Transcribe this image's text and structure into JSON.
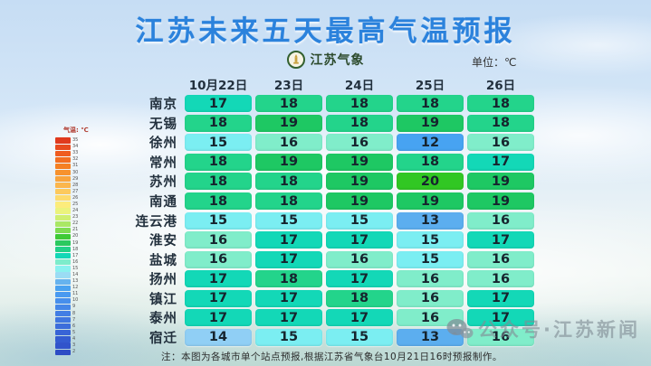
{
  "title": "江苏未来五天最高气温预报",
  "logo": {
    "text": "江苏气象",
    "icon": "pagoda-badge-icon"
  },
  "note": "注：本图为各城市单个站点预报,根据江苏省气象台10月21日16时预报制作。",
  "watermark": {
    "icon": "wechat-icon",
    "text": "公众号·江苏新闻"
  },
  "table": {
    "unit_label": "单位：℃",
    "date_headers": [
      "10月22日",
      "23日",
      "24日",
      "25日",
      "26日"
    ],
    "rows": [
      {
        "city": "南京",
        "temps": [
          17,
          18,
          18,
          18,
          18
        ]
      },
      {
        "city": "无锡",
        "temps": [
          18,
          19,
          18,
          19,
          18
        ]
      },
      {
        "city": "徐州",
        "temps": [
          15,
          16,
          16,
          12,
          16
        ]
      },
      {
        "city": "常州",
        "temps": [
          18,
          19,
          19,
          18,
          17
        ]
      },
      {
        "city": "苏州",
        "temps": [
          18,
          18,
          19,
          20,
          19
        ]
      },
      {
        "city": "南通",
        "temps": [
          18,
          18,
          19,
          19,
          19
        ]
      },
      {
        "city": "连云港",
        "temps": [
          15,
          15,
          15,
          13,
          16
        ]
      },
      {
        "city": "淮安",
        "temps": [
          16,
          17,
          17,
          15,
          17
        ]
      },
      {
        "city": "盐城",
        "temps": [
          16,
          17,
          16,
          15,
          16
        ]
      },
      {
        "city": "扬州",
        "temps": [
          17,
          18,
          17,
          16,
          16
        ]
      },
      {
        "city": "镇江",
        "temps": [
          17,
          17,
          18,
          16,
          17
        ]
      },
      {
        "city": "泰州",
        "temps": [
          17,
          17,
          17,
          16,
          17
        ]
      },
      {
        "city": "宿迁",
        "temps": [
          14,
          15,
          15,
          13,
          16
        ]
      }
    ]
  },
  "temp_colors": {
    "12": "#47a3f2",
    "13": "#5caeef",
    "14": "#90cff5",
    "15": "#7beef2",
    "16": "#80edca",
    "17": "#13d8b7",
    "18": "#23d48b",
    "19": "#1ec863",
    "20": "#31c723"
  },
  "legend": {
    "title": "气温: ℃",
    "stops": [
      {
        "t": 35,
        "c": "#e03a1e"
      },
      {
        "t": 34,
        "c": "#e84b1f"
      },
      {
        "t": 33,
        "c": "#ef5c20"
      },
      {
        "t": 32,
        "c": "#f36e21"
      },
      {
        "t": 31,
        "c": "#f58023"
      },
      {
        "t": 30,
        "c": "#f7922e"
      },
      {
        "t": 29,
        "c": "#f9a43d"
      },
      {
        "t": 28,
        "c": "#fbb64d"
      },
      {
        "t": 27,
        "c": "#fcc95d"
      },
      {
        "t": 26,
        "c": "#fddb6d"
      },
      {
        "t": 25,
        "c": "#fcec7c"
      },
      {
        "t": 24,
        "c": "#ebf37d"
      },
      {
        "t": 23,
        "c": "#cfef72"
      },
      {
        "t": 22,
        "c": "#aae765"
      },
      {
        "t": 21,
        "c": "#7fdc52"
      },
      {
        "t": 20,
        "c": "#3fca36"
      },
      {
        "t": 19,
        "c": "#2bc95f"
      },
      {
        "t": 18,
        "c": "#22d189"
      },
      {
        "t": 17,
        "c": "#12d7b6"
      },
      {
        "t": 16,
        "c": "#7deccb"
      },
      {
        "t": 15,
        "c": "#8bf1ef"
      },
      {
        "t": 14,
        "c": "#9bdcf4"
      },
      {
        "t": 13,
        "c": "#66b3ee"
      },
      {
        "t": 12,
        "c": "#4aa2f0"
      },
      {
        "t": 11,
        "c": "#499af0"
      },
      {
        "t": 10,
        "c": "#478fec"
      },
      {
        "t": 9,
        "c": "#4587e8"
      },
      {
        "t": 8,
        "c": "#427ee4"
      },
      {
        "t": 7,
        "c": "#3f76e0"
      },
      {
        "t": 6,
        "c": "#3c6ddb"
      },
      {
        "t": 5,
        "c": "#3864d6"
      },
      {
        "t": 4,
        "c": "#345cd1"
      },
      {
        "t": 3,
        "c": "#3154cb"
      },
      {
        "t": 2,
        "c": "#2d4cc5"
      }
    ]
  },
  "chart_data": {
    "type": "heatmap",
    "title": "江苏未来五天最高气温预报",
    "unit": "℃",
    "x": [
      "10月22日",
      "23日",
      "24日",
      "25日",
      "26日"
    ],
    "y": [
      "南京",
      "无锡",
      "徐州",
      "常州",
      "苏州",
      "南通",
      "连云港",
      "淮安",
      "盐城",
      "扬州",
      "镇江",
      "泰州",
      "宿迁"
    ],
    "values": [
      [
        17,
        18,
        18,
        18,
        18
      ],
      [
        18,
        19,
        18,
        19,
        18
      ],
      [
        15,
        16,
        16,
        12,
        16
      ],
      [
        18,
        19,
        19,
        18,
        17
      ],
      [
        18,
        18,
        19,
        20,
        19
      ],
      [
        18,
        18,
        19,
        19,
        19
      ],
      [
        15,
        15,
        15,
        13,
        16
      ],
      [
        16,
        17,
        17,
        15,
        17
      ],
      [
        16,
        17,
        16,
        15,
        16
      ],
      [
        17,
        18,
        17,
        16,
        16
      ],
      [
        17,
        17,
        18,
        16,
        17
      ],
      [
        17,
        17,
        17,
        16,
        17
      ],
      [
        14,
        15,
        15,
        13,
        16
      ]
    ],
    "colorbar": {
      "label": "气温: ℃",
      "range": [
        2,
        35
      ]
    },
    "legend_position": "left",
    "grid": false
  }
}
